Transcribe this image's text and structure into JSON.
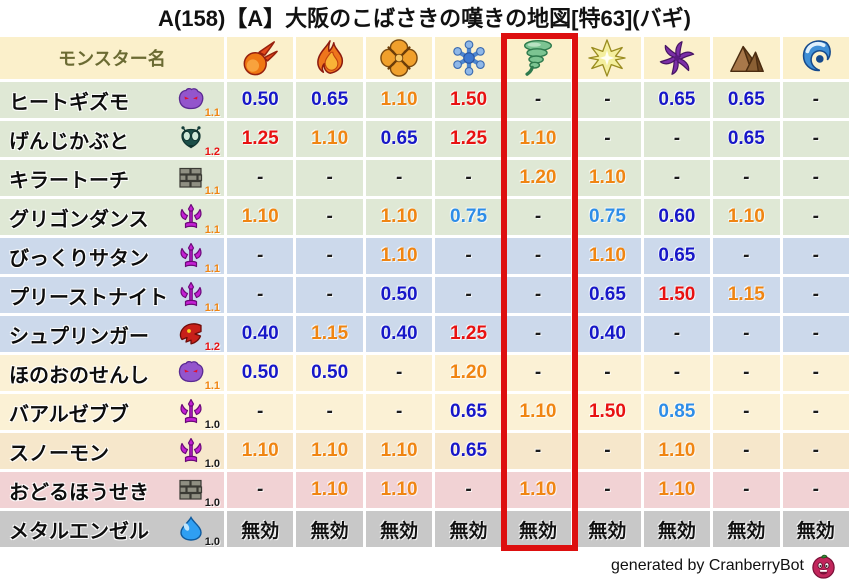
{
  "chart_data": {
    "type": "table",
    "title": "A(158)【A】大阪のこばさきの嘆きの地図[特63](バギ)",
    "name_column_header": "モンスター名",
    "element_columns": [
      "fireball",
      "flame",
      "explosion",
      "snowflake",
      "tornado",
      "spark",
      "pinwheel",
      "mountain",
      "wave"
    ],
    "highlighted_column_index": 4,
    "rows": [
      {
        "name": "ヒートギズモ",
        "family_icon": "ghost",
        "multiplier": "1.1",
        "row_color": "#dfe8d5",
        "values": [
          "0.50",
          "0.65",
          "1.10",
          "1.50",
          "-",
          "-",
          "0.65",
          "0.65",
          "-"
        ]
      },
      {
        "name": "げんじかぶと",
        "family_icon": "beetle",
        "multiplier": "1.2",
        "row_color": "#dfe8d5",
        "values": [
          "1.25",
          "1.10",
          "0.65",
          "1.25",
          "1.10",
          "-",
          "-",
          "0.65",
          "-"
        ]
      },
      {
        "name": "キラートーチ",
        "family_icon": "brick",
        "multiplier": "1.1",
        "row_color": "#dfe8d5",
        "values": [
          "-",
          "-",
          "-",
          "-",
          "1.20",
          "1.10",
          "-",
          "-",
          "-"
        ]
      },
      {
        "name": "グリゴンダンス",
        "family_icon": "trident",
        "multiplier": "1.1",
        "row_color": "#dfe8d5",
        "values": [
          "1.10",
          "-",
          "1.10",
          "0.75",
          "-",
          "0.75",
          "0.60",
          "1.10",
          "-"
        ]
      },
      {
        "name": "びっくりサタン",
        "family_icon": "trident",
        "multiplier": "1.1",
        "row_color": "#ccd9eb",
        "values": [
          "-",
          "-",
          "1.10",
          "-",
          "-",
          "1.10",
          "0.65",
          "-",
          "-"
        ]
      },
      {
        "name": "プリーストナイト",
        "family_icon": "trident",
        "multiplier": "1.1",
        "row_color": "#ccd9eb",
        "values": [
          "-",
          "-",
          "0.50",
          "-",
          "-",
          "0.65",
          "1.50",
          "1.15",
          "-"
        ]
      },
      {
        "name": "シュプリンガー",
        "family_icon": "dragon",
        "multiplier": "1.2",
        "row_color": "#ccd9eb",
        "values": [
          "0.40",
          "1.15",
          "0.40",
          "1.25",
          "-",
          "0.40",
          "-",
          "-",
          "-"
        ]
      },
      {
        "name": "ほのおのせんし",
        "family_icon": "ghost",
        "multiplier": "1.1",
        "row_color": "#fbf1d5",
        "values": [
          "0.50",
          "0.50",
          "-",
          "1.20",
          "-",
          "-",
          "-",
          "-",
          "-"
        ]
      },
      {
        "name": "バアルゼブブ",
        "family_icon": "trident",
        "multiplier": "1.0",
        "row_color": "#fbf1d5",
        "values": [
          "-",
          "-",
          "-",
          "0.65",
          "1.10",
          "1.50",
          "0.85",
          "-",
          "-"
        ]
      },
      {
        "name": "スノーモン",
        "family_icon": "trident",
        "multiplier": "1.0",
        "row_color": "#f6e7cb",
        "values": [
          "1.10",
          "1.10",
          "1.10",
          "0.65",
          "-",
          "-",
          "1.10",
          "-",
          "-"
        ]
      },
      {
        "name": "おどるほうせき",
        "family_icon": "brick",
        "multiplier": "1.0",
        "row_color": "#f1d2d4",
        "values": [
          "-",
          "1.10",
          "1.10",
          "-",
          "1.10",
          "-",
          "1.10",
          "-",
          "-"
        ]
      },
      {
        "name": "メタルエンゼル",
        "family_icon": "slime",
        "multiplier": "1.0",
        "row_color": "#c8c8c8",
        "values": [
          "無効",
          "無効",
          "無効",
          "無効",
          "無効",
          "無効",
          "無効",
          "無効",
          "無効"
        ]
      }
    ]
  },
  "colors": {
    "header_bg": "#fbf0cb",
    "header_text": "#6b6b33",
    "value_down": "#1717c8",
    "value_down_light": "#2e8de8",
    "value_up": "#f08512",
    "value_up_strong": "#e81111",
    "dash": "#1a1a1a",
    "immune": "#111111",
    "mult_normal": "#1a1a1a",
    "highlight_box": "#dd0f0f"
  },
  "footer": {
    "text": "generated by CranberryBot",
    "icon": "cranberry"
  }
}
